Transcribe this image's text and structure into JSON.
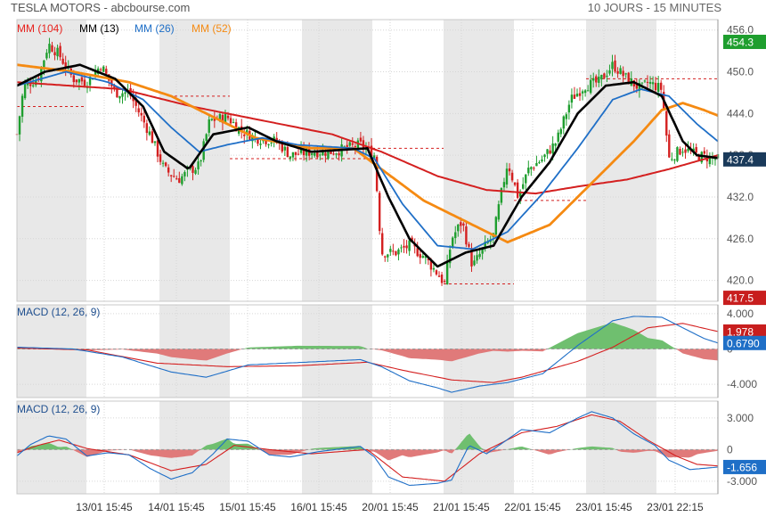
{
  "header": {
    "title": "TESLA MOTORS - abcbourse.com",
    "period": "10 JOURS - 15 MINUTES"
  },
  "legend": [
    {
      "label": "MM (104)",
      "color": "#e8211d"
    },
    {
      "label": "MM (13)",
      "color": "#000000"
    },
    {
      "label": "MM (26)",
      "color": "#1f6fc7"
    },
    {
      "label": "MM (52)",
      "color": "#f58a12"
    }
  ],
  "colors": {
    "up": "#1e9e2e",
    "down": "#d42020",
    "shade": "#e8e8e8",
    "grid": "#d6d6d6",
    "hist_pos": "#6fbf6f",
    "hist_neg": "#e07a7a",
    "macd_line": "#1f6fc7",
    "signal_line": "#d42020"
  },
  "chart_data": [
    {
      "type": "candlestick",
      "title": "TESLA MOTORS - abcbourse.com",
      "x_ticks": [
        "13/01 15:45",
        "14/01 15:45",
        "15/01 15:45",
        "16/01 15:45",
        "20/01 15:45",
        "21/01 15:45",
        "22/01 15:45",
        "23/01 15:45",
        "23/01 22:15"
      ],
      "y_ticks": [
        "456.0",
        "450.0",
        "444.0",
        "438.0",
        "432.0",
        "426.0",
        "420.0"
      ],
      "ylim": [
        417,
        457.5
      ],
      "price_badges": [
        {
          "label": "454.3",
          "value": 454.3,
          "color": "#1e9e2e"
        },
        {
          "label": "437.4",
          "value": 437.4,
          "color": "#1a3a5a"
        },
        {
          "label": "417.5",
          "value": 417.5,
          "color": "#c81e1e"
        }
      ],
      "reference_levels": [
        446.5,
        445.0,
        439.0,
        437.5,
        431.5,
        419.5,
        449.0
      ],
      "close_anchors": [
        {
          "t": 0,
          "v": 441.0
        },
        {
          "t": 0.01,
          "v": 448.0
        },
        {
          "t": 0.03,
          "v": 449.0
        },
        {
          "t": 0.045,
          "v": 454.0
        },
        {
          "t": 0.06,
          "v": 452.5
        },
        {
          "t": 0.08,
          "v": 449.0
        },
        {
          "t": 0.1,
          "v": 448.5
        },
        {
          "t": 0.12,
          "v": 451.0
        },
        {
          "t": 0.14,
          "v": 447.0
        },
        {
          "t": 0.16,
          "v": 447.0
        },
        {
          "t": 0.175,
          "v": 444.0
        },
        {
          "t": 0.19,
          "v": 441.0
        },
        {
          "t": 0.21,
          "v": 436.0
        },
        {
          "t": 0.23,
          "v": 434.5
        },
        {
          "t": 0.25,
          "v": 436.0
        },
        {
          "t": 0.26,
          "v": 436.5
        },
        {
          "t": 0.275,
          "v": 443.0
        },
        {
          "t": 0.3,
          "v": 443.5
        },
        {
          "t": 0.32,
          "v": 441.5
        },
        {
          "t": 0.34,
          "v": 440.5
        },
        {
          "t": 0.37,
          "v": 440.0
        },
        {
          "t": 0.39,
          "v": 438.0
        },
        {
          "t": 0.42,
          "v": 438.5
        },
        {
          "t": 0.45,
          "v": 438.5
        },
        {
          "t": 0.49,
          "v": 439.5
        },
        {
          "t": 0.51,
          "v": 438.0
        },
        {
          "t": 0.52,
          "v": 424.0
        },
        {
          "t": 0.54,
          "v": 424.0
        },
        {
          "t": 0.56,
          "v": 425.0
        },
        {
          "t": 0.58,
          "v": 423.5
        },
        {
          "t": 0.6,
          "v": 421.0
        },
        {
          "t": 0.61,
          "v": 419.5
        },
        {
          "t": 0.62,
          "v": 426.0
        },
        {
          "t": 0.635,
          "v": 428.5
        },
        {
          "t": 0.65,
          "v": 422.0
        },
        {
          "t": 0.665,
          "v": 424.5
        },
        {
          "t": 0.68,
          "v": 426.5
        },
        {
          "t": 0.69,
          "v": 432.0
        },
        {
          "t": 0.7,
          "v": 437.0
        },
        {
          "t": 0.715,
          "v": 432.0
        },
        {
          "t": 0.73,
          "v": 436.0
        },
        {
          "t": 0.75,
          "v": 437.5
        },
        {
          "t": 0.77,
          "v": 440.0
        },
        {
          "t": 0.79,
          "v": 446.0
        },
        {
          "t": 0.81,
          "v": 448.0
        },
        {
          "t": 0.83,
          "v": 448.5
        },
        {
          "t": 0.85,
          "v": 451.0
        },
        {
          "t": 0.87,
          "v": 449.0
        },
        {
          "t": 0.89,
          "v": 447.5
        },
        {
          "t": 0.9,
          "v": 448.5
        },
        {
          "t": 0.92,
          "v": 447.5
        },
        {
          "t": 0.93,
          "v": 437.5
        },
        {
          "t": 0.95,
          "v": 439.0
        },
        {
          "t": 0.97,
          "v": 438.0
        },
        {
          "t": 1.0,
          "v": 437.4
        }
      ],
      "ma_anchors": {
        "MM (13)": [
          {
            "t": 0,
            "v": 448.0
          },
          {
            "t": 0.04,
            "v": 450.0
          },
          {
            "t": 0.09,
            "v": 451.0
          },
          {
            "t": 0.14,
            "v": 449.0
          },
          {
            "t": 0.18,
            "v": 445.0
          },
          {
            "t": 0.21,
            "v": 438.5
          },
          {
            "t": 0.245,
            "v": 436.0
          },
          {
            "t": 0.28,
            "v": 441.0
          },
          {
            "t": 0.33,
            "v": 442.0
          },
          {
            "t": 0.37,
            "v": 440.0
          },
          {
            "t": 0.42,
            "v": 438.5
          },
          {
            "t": 0.5,
            "v": 439.0
          },
          {
            "t": 0.53,
            "v": 432.0
          },
          {
            "t": 0.56,
            "v": 426.0
          },
          {
            "t": 0.6,
            "v": 422.0
          },
          {
            "t": 0.64,
            "v": 424.0
          },
          {
            "t": 0.68,
            "v": 425.0
          },
          {
            "t": 0.72,
            "v": 432.0
          },
          {
            "t": 0.76,
            "v": 437.0
          },
          {
            "t": 0.8,
            "v": 444.0
          },
          {
            "t": 0.84,
            "v": 448.0
          },
          {
            "t": 0.88,
            "v": 448.5
          },
          {
            "t": 0.92,
            "v": 446.5
          },
          {
            "t": 0.95,
            "v": 440.0
          },
          {
            "t": 0.97,
            "v": 438.0
          },
          {
            "t": 1.0,
            "v": 437.6
          }
        ],
        "MM (26)": [
          {
            "t": 0,
            "v": 448.0
          },
          {
            "t": 0.07,
            "v": 450.0
          },
          {
            "t": 0.13,
            "v": 448.5
          },
          {
            "t": 0.18,
            "v": 446.0
          },
          {
            "t": 0.22,
            "v": 442.0
          },
          {
            "t": 0.26,
            "v": 438.5
          },
          {
            "t": 0.3,
            "v": 439.5
          },
          {
            "t": 0.35,
            "v": 440.5
          },
          {
            "t": 0.4,
            "v": 439.5
          },
          {
            "t": 0.48,
            "v": 439.0
          },
          {
            "t": 0.51,
            "v": 437.5
          },
          {
            "t": 0.55,
            "v": 431.0
          },
          {
            "t": 0.6,
            "v": 425.0
          },
          {
            "t": 0.65,
            "v": 424.5
          },
          {
            "t": 0.7,
            "v": 427.0
          },
          {
            "t": 0.75,
            "v": 432.5
          },
          {
            "t": 0.8,
            "v": 439.0
          },
          {
            "t": 0.85,
            "v": 446.0
          },
          {
            "t": 0.89,
            "v": 447.5
          },
          {
            "t": 0.93,
            "v": 446.5
          },
          {
            "t": 0.97,
            "v": 442.5
          },
          {
            "t": 1.0,
            "v": 440.0
          }
        ],
        "MM (52)": [
          {
            "t": 0,
            "v": 451.0
          },
          {
            "t": 0.08,
            "v": 450.0
          },
          {
            "t": 0.16,
            "v": 448.5
          },
          {
            "t": 0.22,
            "v": 446.5
          },
          {
            "t": 0.28,
            "v": 443.5
          },
          {
            "t": 0.34,
            "v": 440.5
          },
          {
            "t": 0.42,
            "v": 439.0
          },
          {
            "t": 0.48,
            "v": 439.0
          },
          {
            "t": 0.52,
            "v": 436.0
          },
          {
            "t": 0.58,
            "v": 431.5
          },
          {
            "t": 0.64,
            "v": 428.5
          },
          {
            "t": 0.7,
            "v": 425.5
          },
          {
            "t": 0.76,
            "v": 428.0
          },
          {
            "t": 0.82,
            "v": 434.0
          },
          {
            "t": 0.88,
            "v": 440.0
          },
          {
            "t": 0.92,
            "v": 444.5
          },
          {
            "t": 0.95,
            "v": 445.5
          },
          {
            "t": 0.98,
            "v": 444.5
          },
          {
            "t": 1.0,
            "v": 443.7
          }
        ],
        "MM (104)": [
          {
            "t": 0,
            "v": 448.5
          },
          {
            "t": 0.15,
            "v": 447.5
          },
          {
            "t": 0.25,
            "v": 445.0
          },
          {
            "t": 0.35,
            "v": 443.0
          },
          {
            "t": 0.45,
            "v": 441.0
          },
          {
            "t": 0.52,
            "v": 438.5
          },
          {
            "t": 0.6,
            "v": 435.0
          },
          {
            "t": 0.67,
            "v": 433.0
          },
          {
            "t": 0.74,
            "v": 432.5
          },
          {
            "t": 0.8,
            "v": 433.5
          },
          {
            "t": 0.87,
            "v": 434.5
          },
          {
            "t": 0.93,
            "v": 436.0
          },
          {
            "t": 1.0,
            "v": 438.0
          }
        ]
      }
    },
    {
      "type": "macd",
      "label": "MACD (12, 26, 9)",
      "y_ticks": [
        "4.000",
        "0",
        "-4.000"
      ],
      "ylim": [
        -5.5,
        5.0
      ],
      "value_badges": [
        {
          "label": "1.978",
          "value": 1.978,
          "color": "#c81e1e"
        },
        {
          "label": "0.6790",
          "value": 0.679,
          "color": "#1f6fc7"
        }
      ],
      "macd_anchors": [
        {
          "t": 0,
          "v": 0.2
        },
        {
          "t": 0.08,
          "v": 0.0
        },
        {
          "t": 0.15,
          "v": -0.9
        },
        {
          "t": 0.22,
          "v": -2.6
        },
        {
          "t": 0.27,
          "v": -3.2
        },
        {
          "t": 0.33,
          "v": -1.8
        },
        {
          "t": 0.41,
          "v": -1.5
        },
        {
          "t": 0.49,
          "v": -1.2
        },
        {
          "t": 0.52,
          "v": -2.0
        },
        {
          "t": 0.56,
          "v": -3.6
        },
        {
          "t": 0.6,
          "v": -4.4
        },
        {
          "t": 0.62,
          "v": -4.9
        },
        {
          "t": 0.66,
          "v": -4.2
        },
        {
          "t": 0.7,
          "v": -3.8
        },
        {
          "t": 0.75,
          "v": -2.8
        },
        {
          "t": 0.8,
          "v": 0.4
        },
        {
          "t": 0.85,
          "v": 3.2
        },
        {
          "t": 0.88,
          "v": 3.7
        },
        {
          "t": 0.92,
          "v": 3.6
        },
        {
          "t": 0.95,
          "v": 2.4
        },
        {
          "t": 0.98,
          "v": 1.2
        },
        {
          "t": 1.0,
          "v": 0.68
        }
      ],
      "signal_anchors": [
        {
          "t": 0,
          "v": 0.1
        },
        {
          "t": 0.1,
          "v": -0.1
        },
        {
          "t": 0.2,
          "v": -1.6
        },
        {
          "t": 0.3,
          "v": -2.0
        },
        {
          "t": 0.4,
          "v": -1.9
        },
        {
          "t": 0.5,
          "v": -1.5
        },
        {
          "t": 0.55,
          "v": -2.4
        },
        {
          "t": 0.62,
          "v": -3.5
        },
        {
          "t": 0.68,
          "v": -3.8
        },
        {
          "t": 0.72,
          "v": -3.2
        },
        {
          "t": 0.8,
          "v": -1.4
        },
        {
          "t": 0.85,
          "v": 0.2
        },
        {
          "t": 0.9,
          "v": 2.4
        },
        {
          "t": 0.95,
          "v": 2.9
        },
        {
          "t": 1.0,
          "v": 1.98
        }
      ]
    },
    {
      "type": "macd",
      "label": "MACD (12, 26, 9)",
      "y_ticks": [
        "3.000",
        "0",
        "-3.000"
      ],
      "ylim": [
        -4.2,
        4.6
      ],
      "value_badges": [
        {
          "label": "-1.656",
          "value": -1.656,
          "color": "#1f6fc7"
        }
      ],
      "macd_anchors": [
        {
          "t": 0,
          "v": -0.6
        },
        {
          "t": 0.02,
          "v": 0.5
        },
        {
          "t": 0.045,
          "v": 1.3
        },
        {
          "t": 0.07,
          "v": 1.0
        },
        {
          "t": 0.1,
          "v": -0.6
        },
        {
          "t": 0.13,
          "v": -0.3
        },
        {
          "t": 0.16,
          "v": -0.5
        },
        {
          "t": 0.19,
          "v": -1.8
        },
        {
          "t": 0.22,
          "v": -2.8
        },
        {
          "t": 0.25,
          "v": -2.2
        },
        {
          "t": 0.28,
          "v": -0.4
        },
        {
          "t": 0.3,
          "v": 1.0
        },
        {
          "t": 0.33,
          "v": 0.8
        },
        {
          "t": 0.36,
          "v": -0.5
        },
        {
          "t": 0.39,
          "v": -0.7
        },
        {
          "t": 0.43,
          "v": -0.2
        },
        {
          "t": 0.49,
          "v": 0.3
        },
        {
          "t": 0.51,
          "v": -0.7
        },
        {
          "t": 0.53,
          "v": -2.6
        },
        {
          "t": 0.56,
          "v": -3.4
        },
        {
          "t": 0.6,
          "v": -3.2
        },
        {
          "t": 0.62,
          "v": -2.9
        },
        {
          "t": 0.645,
          "v": 0.4
        },
        {
          "t": 0.67,
          "v": -0.4
        },
        {
          "t": 0.69,
          "v": 0.5
        },
        {
          "t": 0.72,
          "v": 1.9
        },
        {
          "t": 0.76,
          "v": 1.6
        },
        {
          "t": 0.8,
          "v": 3.0
        },
        {
          "t": 0.82,
          "v": 3.6
        },
        {
          "t": 0.85,
          "v": 3.0
        },
        {
          "t": 0.88,
          "v": 1.5
        },
        {
          "t": 0.91,
          "v": 0.4
        },
        {
          "t": 0.93,
          "v": -1.0
        },
        {
          "t": 0.96,
          "v": -1.9
        },
        {
          "t": 1.0,
          "v": -1.66
        }
      ],
      "signal_anchors": [
        {
          "t": 0,
          "v": -0.3
        },
        {
          "t": 0.03,
          "v": 0.4
        },
        {
          "t": 0.06,
          "v": 0.9
        },
        {
          "t": 0.1,
          "v": 0.1
        },
        {
          "t": 0.16,
          "v": -0.5
        },
        {
          "t": 0.22,
          "v": -2.0
        },
        {
          "t": 0.27,
          "v": -1.4
        },
        {
          "t": 0.31,
          "v": 0.4
        },
        {
          "t": 0.36,
          "v": 0.0
        },
        {
          "t": 0.42,
          "v": -0.4
        },
        {
          "t": 0.5,
          "v": 0.0
        },
        {
          "t": 0.55,
          "v": -2.6
        },
        {
          "t": 0.61,
          "v": -3.0
        },
        {
          "t": 0.66,
          "v": -0.4
        },
        {
          "t": 0.72,
          "v": 1.6
        },
        {
          "t": 0.77,
          "v": 2.2
        },
        {
          "t": 0.82,
          "v": 3.3
        },
        {
          "t": 0.86,
          "v": 2.7
        },
        {
          "t": 0.9,
          "v": 0.9
        },
        {
          "t": 0.94,
          "v": -0.6
        },
        {
          "t": 0.97,
          "v": -1.4
        },
        {
          "t": 1.0,
          "v": -1.55
        }
      ]
    }
  ]
}
